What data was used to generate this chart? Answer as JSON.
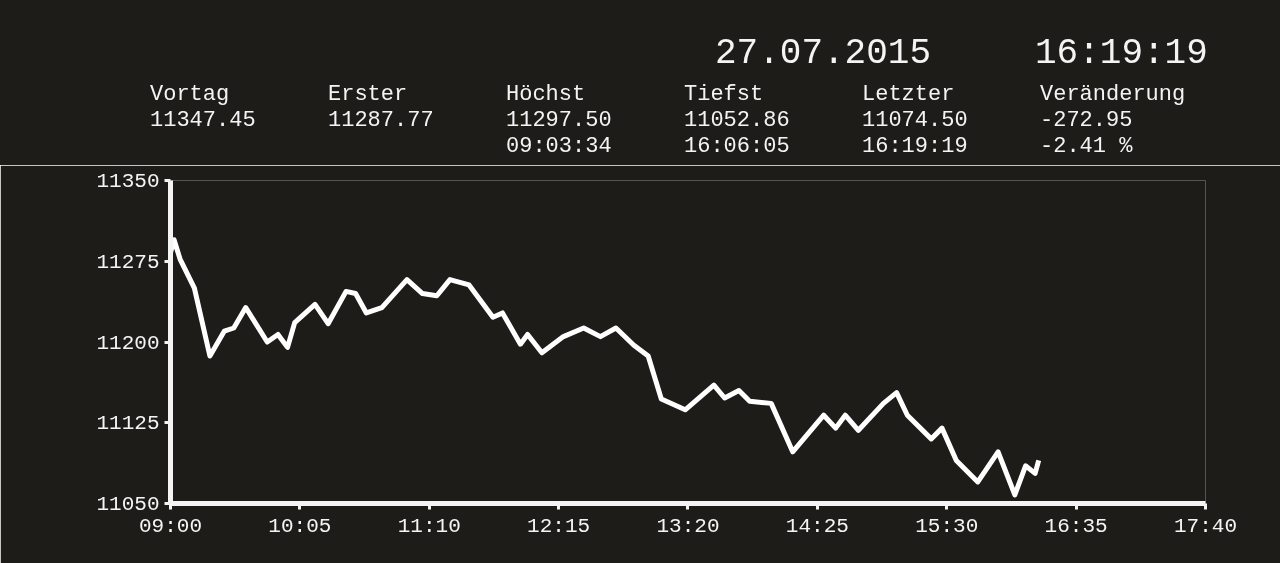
{
  "chart_data": {
    "type": "line",
    "title": "27.07.2015",
    "subtitle": "16:19:19",
    "annotations": [
      "Vortag\n11347.45",
      "Erster\n11287.77",
      "Höchst\n11297.50\n09:03:34",
      "Tiefst\n11052.86\n16:06:05",
      "Letzter\n11074.50\n16:19:19",
      "Veränderung\n-272.95\n-2.41 %"
    ],
    "x": [
      9.0,
      9.03,
      9.08,
      9.2,
      9.33,
      9.45,
      9.53,
      9.63,
      9.81,
      9.9,
      9.98,
      10.04,
      10.21,
      10.32,
      10.47,
      10.55,
      10.64,
      10.77,
      10.98,
      11.11,
      11.23,
      11.34,
      11.5,
      11.7,
      11.78,
      11.93,
      11.99,
      12.11,
      12.29,
      12.46,
      12.6,
      12.73,
      12.88,
      13.0,
      13.11,
      13.31,
      13.55,
      13.64,
      13.76,
      13.85,
      14.03,
      14.21,
      14.47,
      14.57,
      14.65,
      14.76,
      14.97,
      15.08,
      15.17,
      15.37,
      15.46,
      15.58,
      15.76,
      15.93,
      16.07,
      16.16,
      16.24,
      16.27
    ],
    "series": [
      {
        "color": "#ffffff",
        "values": [
          11283,
          11295,
          11277,
          11250,
          11187,
          11210,
          11213,
          11232,
          11200,
          11207,
          11195,
          11218,
          11235,
          11217,
          11247,
          11245,
          11227,
          11232,
          11258,
          11245,
          11243,
          11258,
          11253,
          11223,
          11227,
          11198,
          11207,
          11190,
          11205,
          11213,
          11205,
          11213,
          11197,
          11187,
          11147,
          11137,
          11160,
          11148,
          11155,
          11145,
          11143,
          11098,
          11132,
          11120,
          11132,
          11118,
          11143,
          11153,
          11132,
          11110,
          11120,
          11090,
          11070,
          11098,
          11058,
          11085,
          11078,
          11090
        ]
      }
    ],
    "xlim": [
      9,
      17.6667
    ],
    "ylim": [
      11050,
      11350
    ],
    "xticks": [
      {
        "value": 9,
        "label": "09:00"
      },
      {
        "value": 10.0833,
        "label": "10:05"
      },
      {
        "value": 11.1667,
        "label": "11:10"
      },
      {
        "value": 12.25,
        "label": "12:15"
      },
      {
        "value": 13.3333,
        "label": "13:20"
      },
      {
        "value": 14.4167,
        "label": "14:25"
      },
      {
        "value": 15.5,
        "label": "15:30"
      },
      {
        "value": 16.5833,
        "label": "16:35"
      },
      {
        "value": 17.6667,
        "label": "17:40"
      }
    ],
    "yticks": [
      11050,
      11125,
      11200,
      11275,
      11350
    ],
    "grid": false,
    "marker": "none",
    "line_style": "solid"
  }
}
